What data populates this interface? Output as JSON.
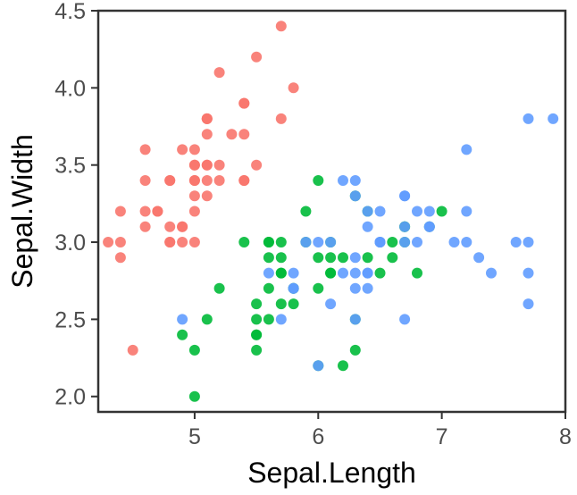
{
  "chart_data": {
    "type": "scatter",
    "title": "",
    "xlabel": "Sepal.Length",
    "ylabel": "Sepal.Width",
    "xlim": [
      4.22,
      8.0
    ],
    "ylim": [
      1.9,
      4.5
    ],
    "xticks": [
      5,
      6,
      7,
      8
    ],
    "yticks": [
      2.0,
      2.5,
      3.0,
      3.5,
      4.0,
      4.5
    ],
    "xtick_labels": [
      "5",
      "6",
      "7",
      "8"
    ],
    "ytick_labels": [
      "2.0",
      "2.5",
      "3.0",
      "3.5",
      "4.0",
      "4.5"
    ],
    "grid": false,
    "legend": "none",
    "series": [
      {
        "color": "#F8766D",
        "points": [
          [
            5.1,
            3.5
          ],
          [
            4.9,
            3.0
          ],
          [
            4.7,
            3.2
          ],
          [
            4.6,
            3.1
          ],
          [
            5.0,
            3.6
          ],
          [
            5.4,
            3.9
          ],
          [
            4.6,
            3.4
          ],
          [
            5.0,
            3.4
          ],
          [
            4.4,
            2.9
          ],
          [
            4.9,
            3.1
          ],
          [
            5.4,
            3.7
          ],
          [
            4.8,
            3.4
          ],
          [
            4.8,
            3.0
          ],
          [
            4.3,
            3.0
          ],
          [
            5.8,
            4.0
          ],
          [
            5.7,
            4.4
          ],
          [
            5.4,
            3.9
          ],
          [
            5.1,
            3.5
          ],
          [
            5.7,
            3.8
          ],
          [
            5.1,
            3.8
          ],
          [
            5.4,
            3.4
          ],
          [
            5.1,
            3.7
          ],
          [
            4.6,
            3.6
          ],
          [
            5.1,
            3.3
          ],
          [
            4.8,
            3.4
          ],
          [
            5.0,
            3.0
          ],
          [
            5.0,
            3.4
          ],
          [
            5.2,
            3.5
          ],
          [
            5.2,
            3.4
          ],
          [
            4.7,
            3.2
          ],
          [
            4.8,
            3.1
          ],
          [
            5.4,
            3.4
          ],
          [
            5.2,
            4.1
          ],
          [
            5.5,
            4.2
          ],
          [
            4.9,
            3.1
          ],
          [
            5.0,
            3.2
          ],
          [
            5.5,
            3.5
          ],
          [
            4.9,
            3.6
          ],
          [
            4.4,
            3.0
          ],
          [
            5.1,
            3.4
          ],
          [
            5.0,
            3.5
          ],
          [
            4.5,
            2.3
          ],
          [
            4.4,
            3.2
          ],
          [
            5.0,
            3.5
          ],
          [
            5.1,
            3.8
          ],
          [
            4.8,
            3.0
          ],
          [
            5.1,
            3.8
          ],
          [
            4.6,
            3.2
          ],
          [
            5.3,
            3.7
          ],
          [
            5.0,
            3.3
          ]
        ]
      },
      {
        "color": "#00BA38",
        "points": [
          [
            7.0,
            3.2
          ],
          [
            6.4,
            3.2
          ],
          [
            6.9,
            3.1
          ],
          [
            5.5,
            2.3
          ],
          [
            6.5,
            2.8
          ],
          [
            5.7,
            2.8
          ],
          [
            6.3,
            3.3
          ],
          [
            4.9,
            2.4
          ],
          [
            6.6,
            2.9
          ],
          [
            5.2,
            2.7
          ],
          [
            5.0,
            2.0
          ],
          [
            5.9,
            3.0
          ],
          [
            6.0,
            2.2
          ],
          [
            6.1,
            2.9
          ],
          [
            5.6,
            2.9
          ],
          [
            6.7,
            3.1
          ],
          [
            5.6,
            3.0
          ],
          [
            5.8,
            2.7
          ],
          [
            6.2,
            2.2
          ],
          [
            5.6,
            2.5
          ],
          [
            5.9,
            3.2
          ],
          [
            6.1,
            2.8
          ],
          [
            6.3,
            2.5
          ],
          [
            6.1,
            2.8
          ],
          [
            6.4,
            2.9
          ],
          [
            6.6,
            3.0
          ],
          [
            6.8,
            2.8
          ],
          [
            6.7,
            3.0
          ],
          [
            6.0,
            2.9
          ],
          [
            5.7,
            2.6
          ],
          [
            5.5,
            2.4
          ],
          [
            5.5,
            2.4
          ],
          [
            5.8,
            2.7
          ],
          [
            6.0,
            2.7
          ],
          [
            5.4,
            3.0
          ],
          [
            6.0,
            3.4
          ],
          [
            6.7,
            3.1
          ],
          [
            6.3,
            2.3
          ],
          [
            5.6,
            3.0
          ],
          [
            5.5,
            2.5
          ],
          [
            5.5,
            2.6
          ],
          [
            6.1,
            3.0
          ],
          [
            5.8,
            2.6
          ],
          [
            5.0,
            2.3
          ],
          [
            5.6,
            2.7
          ],
          [
            5.7,
            3.0
          ],
          [
            5.7,
            2.9
          ],
          [
            6.2,
            2.9
          ],
          [
            5.1,
            2.5
          ],
          [
            5.7,
            2.8
          ]
        ]
      },
      {
        "color": "#619CFF",
        "points": [
          [
            6.3,
            3.3
          ],
          [
            5.8,
            2.7
          ],
          [
            7.1,
            3.0
          ],
          [
            6.3,
            2.9
          ],
          [
            6.5,
            3.0
          ],
          [
            7.6,
            3.0
          ],
          [
            4.9,
            2.5
          ],
          [
            7.3,
            2.9
          ],
          [
            6.7,
            2.5
          ],
          [
            7.2,
            3.6
          ],
          [
            6.5,
            3.2
          ],
          [
            6.4,
            2.7
          ],
          [
            6.8,
            3.0
          ],
          [
            5.7,
            2.5
          ],
          [
            5.8,
            2.8
          ],
          [
            6.4,
            3.2
          ],
          [
            6.5,
            3.0
          ],
          [
            7.7,
            3.8
          ],
          [
            7.7,
            2.6
          ],
          [
            6.0,
            2.2
          ],
          [
            6.9,
            3.2
          ],
          [
            5.6,
            2.8
          ],
          [
            7.7,
            2.8
          ],
          [
            6.3,
            2.7
          ],
          [
            6.7,
            3.3
          ],
          [
            7.2,
            3.2
          ],
          [
            6.2,
            2.8
          ],
          [
            6.1,
            3.0
          ],
          [
            6.4,
            2.8
          ],
          [
            7.2,
            3.0
          ],
          [
            7.4,
            2.8
          ],
          [
            7.9,
            3.8
          ],
          [
            6.4,
            2.8
          ],
          [
            6.3,
            2.8
          ],
          [
            6.1,
            2.6
          ],
          [
            7.7,
            3.0
          ],
          [
            6.3,
            3.4
          ],
          [
            6.4,
            3.1
          ],
          [
            6.0,
            3.0
          ],
          [
            6.9,
            3.1
          ],
          [
            6.7,
            3.1
          ],
          [
            6.9,
            3.1
          ],
          [
            5.8,
            2.7
          ],
          [
            6.8,
            3.2
          ],
          [
            6.7,
            3.3
          ],
          [
            6.7,
            3.0
          ],
          [
            6.3,
            2.5
          ],
          [
            6.5,
            3.0
          ],
          [
            6.2,
            3.4
          ],
          [
            5.9,
            3.0
          ]
        ]
      }
    ]
  }
}
